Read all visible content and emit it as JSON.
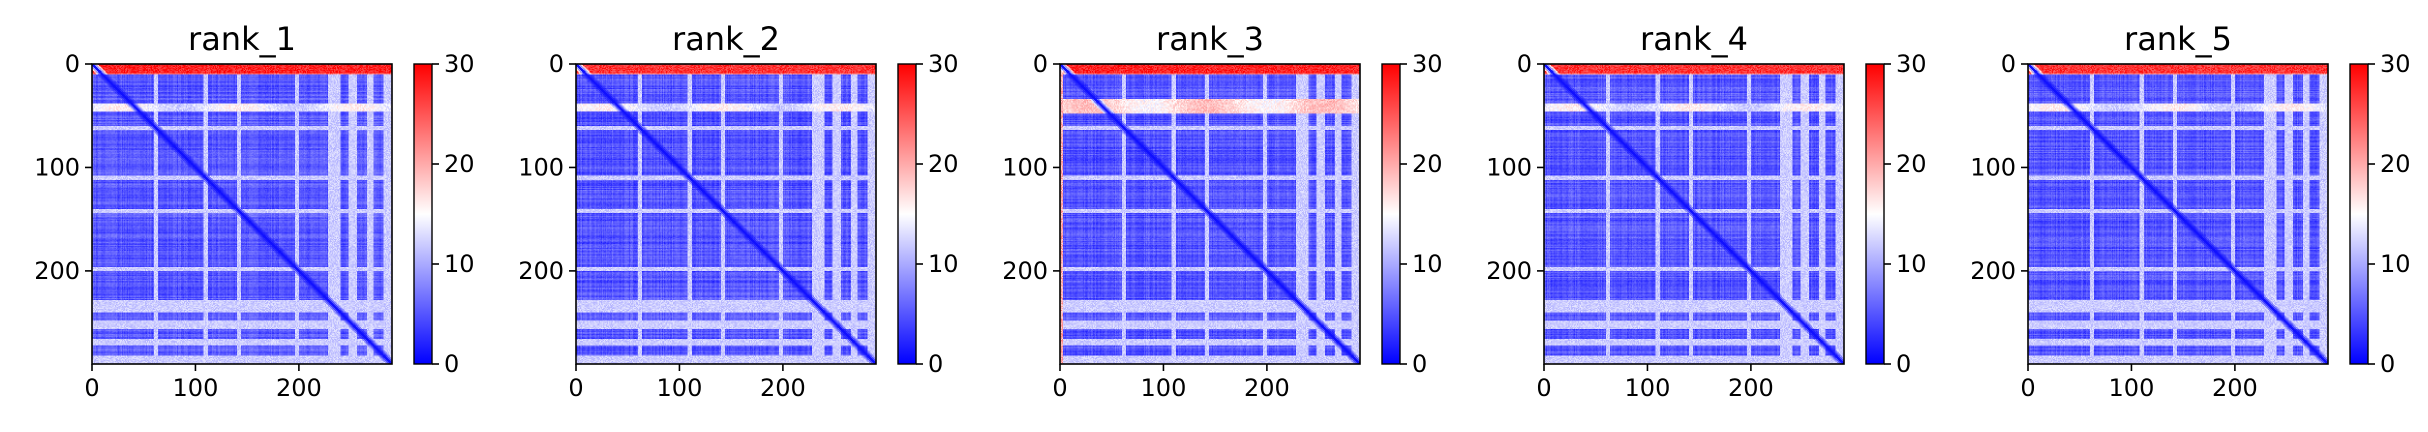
{
  "figure": {
    "colormap": {
      "name": "bwr",
      "low": "#0000ff",
      "mid": "#ffffff",
      "high": "#ff0000"
    }
  },
  "chart_data": [
    {
      "type": "heatmap",
      "title": "rank_1",
      "xlabel": "",
      "ylabel": "",
      "matrix_size": 290,
      "xlim": [
        0,
        290
      ],
      "ylim": [
        290,
        0
      ],
      "x_ticks": [
        0,
        100,
        200
      ],
      "x_tick_labels": [
        "0",
        "100",
        "200"
      ],
      "y_ticks": [
        0,
        100,
        200
      ],
      "y_tick_labels": [
        "0",
        "100",
        "200"
      ],
      "colorbar": {
        "min": 0,
        "max": 30,
        "ticks": [
          0,
          10,
          20,
          30
        ],
        "tick_labels": [
          "0",
          "10",
          "20",
          "30"
        ]
      },
      "features": {
        "background_value": 5,
        "diagonal_value": 1,
        "top_band_rows": [
          0,
          10
        ],
        "top_band_value": 28,
        "pale_band_rows": [
          38,
          46
        ],
        "pale_band_value": 14,
        "light_row_bands": [
          [
            60,
            64
          ],
          [
            108,
            112
          ],
          [
            140,
            144
          ],
          [
            196,
            200
          ],
          [
            228,
            240
          ],
          [
            248,
            256
          ],
          [
            266,
            272
          ],
          [
            282,
            290
          ]
        ],
        "light_row_value": 12,
        "left_strip_value": 0
      }
    },
    {
      "type": "heatmap",
      "title": "rank_2",
      "xlabel": "",
      "ylabel": "",
      "matrix_size": 290,
      "xlim": [
        0,
        290
      ],
      "ylim": [
        290,
        0
      ],
      "x_ticks": [
        0,
        100,
        200
      ],
      "x_tick_labels": [
        "0",
        "100",
        "200"
      ],
      "y_ticks": [
        0,
        100,
        200
      ],
      "y_tick_labels": [
        "0",
        "100",
        "200"
      ],
      "colorbar": {
        "min": 0,
        "max": 30,
        "ticks": [
          0,
          10,
          20,
          30
        ],
        "tick_labels": [
          "0",
          "10",
          "20",
          "30"
        ]
      },
      "features": {
        "background_value": 5,
        "diagonal_value": 1,
        "top_band_rows": [
          0,
          10
        ],
        "top_band_value": 27,
        "pale_band_rows": [
          38,
          46
        ],
        "pale_band_value": 14,
        "light_row_bands": [
          [
            60,
            64
          ],
          [
            108,
            112
          ],
          [
            140,
            144
          ],
          [
            196,
            200
          ],
          [
            228,
            240
          ],
          [
            248,
            256
          ],
          [
            266,
            272
          ],
          [
            282,
            290
          ]
        ],
        "light_row_value": 12,
        "left_strip_value": 0
      }
    },
    {
      "type": "heatmap",
      "title": "rank_3",
      "xlabel": "",
      "ylabel": "",
      "matrix_size": 290,
      "xlim": [
        0,
        290
      ],
      "ylim": [
        290,
        0
      ],
      "x_ticks": [
        0,
        100,
        200
      ],
      "x_tick_labels": [
        "0",
        "100",
        "200"
      ],
      "y_ticks": [
        0,
        100,
        200
      ],
      "y_tick_labels": [
        "0",
        "100",
        "200"
      ],
      "colorbar": {
        "min": 0,
        "max": 30,
        "ticks": [
          0,
          10,
          20,
          30
        ],
        "tick_labels": [
          "0",
          "10",
          "20",
          "30"
        ]
      },
      "features": {
        "background_value": 5,
        "diagonal_value": 1,
        "top_band_rows": [
          0,
          10
        ],
        "top_band_value": 28,
        "pale_band_rows": [
          34,
          48
        ],
        "pale_band_value": 17,
        "light_row_bands": [
          [
            60,
            64
          ],
          [
            108,
            112
          ],
          [
            140,
            144
          ],
          [
            196,
            200
          ],
          [
            228,
            240
          ],
          [
            248,
            256
          ],
          [
            266,
            272
          ],
          [
            282,
            290
          ]
        ],
        "light_row_value": 12,
        "left_strip_value": 20
      }
    },
    {
      "type": "heatmap",
      "title": "rank_4",
      "xlabel": "",
      "ylabel": "",
      "matrix_size": 290,
      "xlim": [
        0,
        290
      ],
      "ylim": [
        290,
        0
      ],
      "x_ticks": [
        0,
        100,
        200
      ],
      "x_tick_labels": [
        "0",
        "100",
        "200"
      ],
      "y_ticks": [
        0,
        100,
        200
      ],
      "y_tick_labels": [
        "0",
        "100",
        "200"
      ],
      "colorbar": {
        "min": 0,
        "max": 30,
        "ticks": [
          0,
          10,
          20,
          30
        ],
        "tick_labels": [
          "0",
          "10",
          "20",
          "30"
        ]
      },
      "features": {
        "background_value": 5,
        "diagonal_value": 1,
        "top_band_rows": [
          0,
          10
        ],
        "top_band_value": 27,
        "pale_band_rows": [
          38,
          46
        ],
        "pale_band_value": 14,
        "light_row_bands": [
          [
            60,
            64
          ],
          [
            108,
            112
          ],
          [
            140,
            144
          ],
          [
            196,
            200
          ],
          [
            228,
            240
          ],
          [
            248,
            256
          ],
          [
            266,
            272
          ],
          [
            282,
            290
          ]
        ],
        "light_row_value": 12,
        "left_strip_value": 0
      }
    },
    {
      "type": "heatmap",
      "title": "rank_5",
      "xlabel": "",
      "ylabel": "",
      "matrix_size": 290,
      "xlim": [
        0,
        290
      ],
      "ylim": [
        290,
        0
      ],
      "x_ticks": [
        0,
        100,
        200
      ],
      "x_tick_labels": [
        "0",
        "100",
        "200"
      ],
      "y_ticks": [
        0,
        100,
        200
      ],
      "y_tick_labels": [
        "0",
        "100",
        "200"
      ],
      "colorbar": {
        "min": 0,
        "max": 30,
        "ticks": [
          0,
          10,
          20,
          30
        ],
        "tick_labels": [
          "0",
          "10",
          "20",
          "30"
        ]
      },
      "features": {
        "background_value": 5,
        "diagonal_value": 1,
        "top_band_rows": [
          0,
          10
        ],
        "top_band_value": 27,
        "pale_band_rows": [
          38,
          46
        ],
        "pale_band_value": 14,
        "light_row_bands": [
          [
            60,
            64
          ],
          [
            108,
            112
          ],
          [
            140,
            144
          ],
          [
            196,
            200
          ],
          [
            228,
            240
          ],
          [
            248,
            256
          ],
          [
            266,
            272
          ],
          [
            282,
            290
          ]
        ],
        "light_row_value": 12,
        "left_strip_value": 0
      }
    }
  ]
}
